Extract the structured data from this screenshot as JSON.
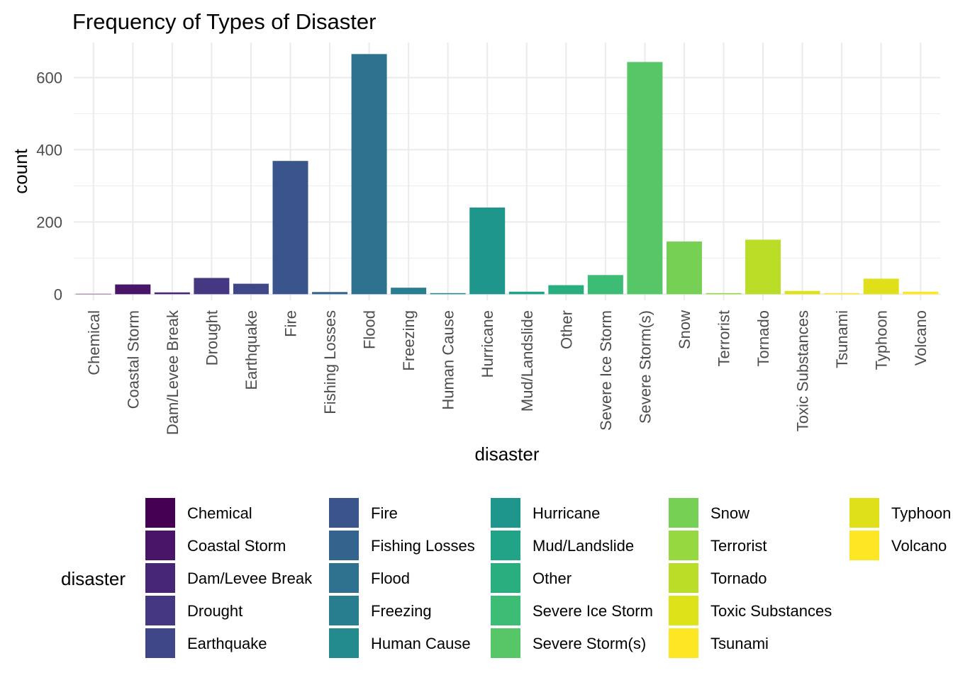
{
  "chart_data": {
    "type": "bar",
    "title": "Frequency of Types of Disaster",
    "xlabel": "disaster",
    "ylabel": "count",
    "ylim": [
      -17,
      697
    ],
    "yticks": [
      0,
      200,
      400,
      600
    ],
    "grid": true,
    "legend_title": "disaster",
    "legend_position": "bottom",
    "categories": [
      "Chemical",
      "Coastal Storm",
      "Dam/Levee Break",
      "Drought",
      "Earthquake",
      "Fire",
      "Fishing Losses",
      "Flood",
      "Freezing",
      "Human Cause",
      "Hurricane",
      "Mud/Landslide",
      "Other",
      "Severe Ice Storm",
      "Severe Storm(s)",
      "Snow",
      "Terrorist",
      "Tornado",
      "Toxic Substances",
      "Tsunami",
      "Typhoon",
      "Volcano"
    ],
    "values": [
      1,
      27,
      5,
      45,
      29,
      369,
      6,
      665,
      18,
      3,
      240,
      7,
      25,
      53,
      643,
      146,
      3,
      151,
      9,
      3,
      43,
      7
    ],
    "colors": [
      "#440154",
      "#481568",
      "#482677",
      "#453781",
      "#3F4788",
      "#39558C",
      "#32648E",
      "#2D718E",
      "#287D8E",
      "#238A8D",
      "#1F968B",
      "#20A386",
      "#29AF7F",
      "#3CBC75",
      "#56C667",
      "#75D054",
      "#95D840",
      "#BADE28",
      "#DDE318",
      "#FDE725",
      "#E0E01A",
      "#FDE725"
    ]
  }
}
